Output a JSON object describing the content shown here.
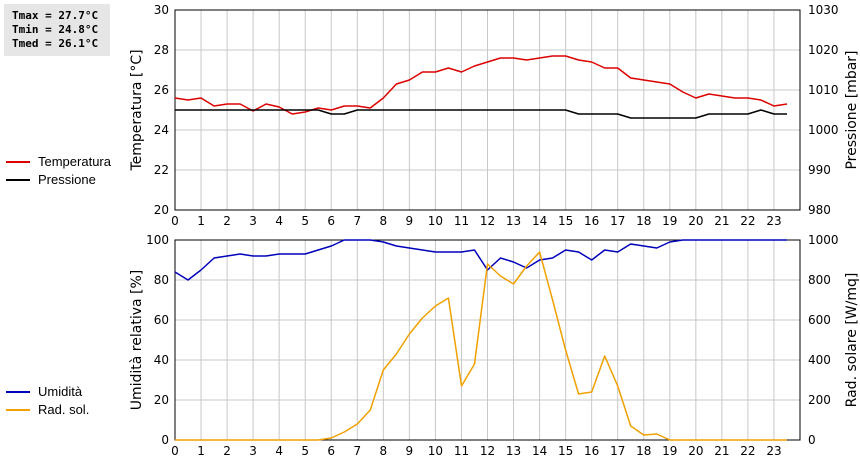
{
  "stats": {
    "tmax": "Tmax = 27.7°C",
    "tmin": "Tmin = 24.8°C",
    "tmed": "Tmed = 26.1°C"
  },
  "colors": {
    "temperature": "#dd0000",
    "pressure": "#000000",
    "humidity": "#0000bb",
    "radiation": "#f0a000",
    "grid": "#c8c8c8"
  },
  "legend_top": [
    {
      "label": "Temperatura",
      "color": "#dd0000"
    },
    {
      "label": "Pressione",
      "color": "#000000"
    }
  ],
  "legend_bottom": [
    {
      "label": "Umidità",
      "color": "#0000bb"
    },
    {
      "label": "Rad. sol.",
      "color": "#f0a000"
    }
  ],
  "chart_data": [
    {
      "type": "line",
      "xlabel": "",
      "xlim": [
        0,
        24
      ],
      "xticks": [
        0,
        1,
        2,
        3,
        4,
        5,
        6,
        7,
        8,
        9,
        10,
        11,
        12,
        13,
        14,
        15,
        16,
        17,
        18,
        19,
        20,
        21,
        22,
        23
      ],
      "ylabel": "Temperatura [°C]",
      "ylim": [
        20,
        30
      ],
      "yticks": [
        20,
        22,
        24,
        26,
        28,
        30
      ],
      "y2label": "Pressione [mbar]",
      "y2lim": [
        980,
        1030
      ],
      "y2ticks": [
        980,
        990,
        1000,
        1010,
        1020,
        1030
      ],
      "grid": true,
      "series": [
        {
          "name": "Temperatura",
          "axis": "left",
          "x": [
            0,
            0.5,
            1,
            1.5,
            2,
            2.5,
            3,
            3.5,
            4,
            4.5,
            5,
            5.5,
            6,
            6.5,
            7,
            7.5,
            8,
            8.5,
            9,
            9.5,
            10,
            10.5,
            11,
            11.5,
            12,
            12.5,
            13,
            13.5,
            14,
            14.5,
            15,
            15.5,
            16,
            16.5,
            17,
            17.5,
            18,
            18.5,
            19,
            19.5,
            20,
            20.5,
            21,
            21.5,
            22,
            22.5,
            23,
            23.5
          ],
          "values": [
            25.6,
            25.5,
            25.6,
            25.2,
            25.3,
            25.3,
            24.95,
            25.3,
            25.15,
            24.8,
            24.9,
            25.1,
            25.0,
            25.2,
            25.2,
            25.1,
            25.6,
            26.3,
            26.5,
            26.9,
            26.9,
            27.1,
            26.9,
            27.2,
            27.4,
            27.6,
            27.6,
            27.5,
            27.6,
            27.7,
            27.7,
            27.5,
            27.4,
            27.1,
            27.1,
            26.6,
            26.5,
            26.4,
            26.3,
            25.9,
            25.6,
            25.8,
            25.7,
            25.6,
            25.6,
            25.5,
            25.2,
            25.3
          ]
        },
        {
          "name": "Pressione",
          "axis": "right",
          "x": [
            0,
            5.5,
            6,
            6.5,
            7,
            15,
            15.5,
            17,
            17.5,
            20,
            20.5,
            22,
            22.5,
            23,
            23.5
          ],
          "values": [
            1005,
            1005,
            1004,
            1004,
            1005,
            1005,
            1004,
            1004,
            1003,
            1003,
            1004,
            1004,
            1005,
            1004,
            1004
          ]
        }
      ]
    },
    {
      "type": "line",
      "xlabel": "",
      "xlim": [
        0,
        24
      ],
      "xticks": [
        0,
        1,
        2,
        3,
        4,
        5,
        6,
        7,
        8,
        9,
        10,
        11,
        12,
        13,
        14,
        15,
        16,
        17,
        18,
        19,
        20,
        21,
        22,
        23
      ],
      "ylabel": "Umidità relativa [%]",
      "ylim": [
        0,
        100
      ],
      "yticks": [
        0,
        20,
        40,
        60,
        80,
        100
      ],
      "y2label": "Rad. solare [W/mq]",
      "y2lim": [
        0,
        1000
      ],
      "y2ticks": [
        0,
        200,
        400,
        600,
        800,
        1000
      ],
      "grid": true,
      "series": [
        {
          "name": "Umidità",
          "axis": "left",
          "x": [
            0,
            0.5,
            1,
            1.5,
            2,
            2.5,
            3,
            3.5,
            4,
            4.5,
            5,
            5.5,
            6,
            6.5,
            7,
            7.5,
            8,
            8.5,
            9,
            9.5,
            10,
            10.5,
            11,
            11.5,
            12,
            12.5,
            13,
            13.5,
            14,
            14.5,
            15,
            15.5,
            16,
            16.5,
            17,
            17.5,
            18,
            18.5,
            19,
            19.5,
            20,
            21,
            22,
            23,
            23.5
          ],
          "values": [
            84,
            80,
            85,
            91,
            92,
            93,
            92,
            92,
            93,
            93,
            93,
            95,
            97,
            100,
            100,
            100,
            99,
            97,
            96,
            95,
            94,
            94,
            94,
            95,
            85,
            91,
            89,
            86,
            90,
            91,
            95,
            94,
            90,
            95,
            94,
            98,
            97,
            96,
            99,
            100,
            100,
            100,
            100,
            100,
            100
          ]
        },
        {
          "name": "Rad. sol.",
          "axis": "right",
          "x": [
            0,
            1,
            2,
            3,
            4,
            5,
            5.5,
            6,
            6.5,
            7,
            7.5,
            8,
            8.5,
            9,
            9.5,
            10,
            10.5,
            11,
            11.5,
            12,
            12.5,
            13,
            13.5,
            14,
            14.5,
            15,
            15.5,
            16,
            16.5,
            17,
            17.5,
            18,
            18.5,
            19,
            19.5,
            20,
            21,
            22,
            23,
            23.5
          ],
          "values": [
            0,
            0,
            0,
            0,
            0,
            0,
            0,
            10,
            40,
            80,
            150,
            350,
            430,
            530,
            610,
            670,
            710,
            270,
            380,
            880,
            820,
            780,
            870,
            940,
            700,
            450,
            230,
            240,
            420,
            270,
            70,
            25,
            30,
            0,
            0,
            0,
            0,
            0,
            0,
            0
          ]
        }
      ]
    }
  ]
}
